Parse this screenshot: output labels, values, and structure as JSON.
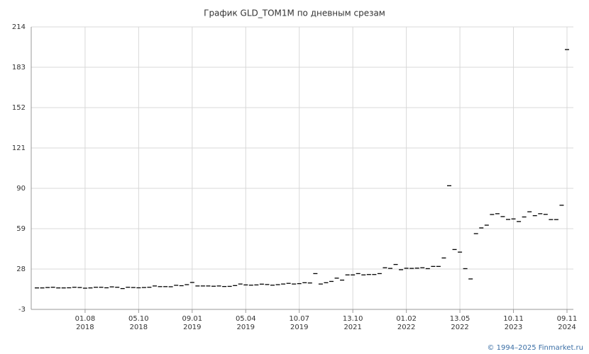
{
  "chart_data": {
    "type": "scatter",
    "marker": "dash",
    "title": "График GLD_TOM1M по дневным срезам",
    "credit": "© 1994–2025 Finmarket.ru",
    "color": "#000000",
    "grid": true,
    "categories": [
      null,
      null,
      null,
      null,
      null,
      null,
      null,
      null,
      null,
      "01.08\n2018",
      null,
      null,
      null,
      null,
      null,
      null,
      null,
      null,
      null,
      "05.10\n2018",
      null,
      null,
      null,
      null,
      null,
      null,
      null,
      null,
      null,
      "09.01\n2019",
      null,
      null,
      null,
      null,
      null,
      null,
      null,
      null,
      null,
      "05.04\n2019",
      null,
      null,
      null,
      null,
      null,
      null,
      null,
      null,
      null,
      "10.07\n2019",
      null,
      null,
      null,
      null,
      null,
      null,
      null,
      null,
      null,
      "13.10\n2021",
      null,
      null,
      null,
      null,
      null,
      null,
      null,
      null,
      null,
      "01.02\n2022",
      null,
      null,
      null,
      null,
      null,
      null,
      null,
      null,
      null,
      "13.05\n2022",
      null,
      null,
      null,
      null,
      null,
      null,
      null,
      null,
      null,
      "10.11\n2023",
      null,
      null,
      null,
      null,
      null,
      null,
      null,
      null,
      null,
      "09.11\n2024"
    ],
    "values": [
      13.5,
      13.5,
      13.8,
      14,
      13.5,
      13.5,
      13.6,
      14,
      13.8,
      13.3,
      13.5,
      14,
      14,
      13.6,
      14.3,
      14,
      13,
      14,
      13.8,
      13.6,
      13.8,
      14,
      15,
      14.5,
      14.5,
      14.4,
      15.5,
      15.2,
      16,
      17.7,
      15,
      15,
      15,
      14.8,
      15,
      14.6,
      14.7,
      15.3,
      16.5,
      15.8,
      15.6,
      15.8,
      16.4,
      16.1,
      15.6,
      16,
      16.5,
      17,
      16.5,
      16.8,
      17.5,
      17.3,
      24.5,
      16.5,
      17.5,
      18.5,
      21,
      19.5,
      23.5,
      23.5,
      24.5,
      23.5,
      23.8,
      23.8,
      24.5,
      29,
      28.5,
      31.5,
      27.5,
      28.6,
      28.5,
      28.7,
      29,
      28.3,
      30,
      30,
      36.5,
      92,
      43,
      41,
      28.3,
      20.4,
      55.2,
      59.6,
      61.7,
      69.9,
      70.5,
      68.3,
      66.1,
      66.5,
      64.5,
      68,
      72,
      69,
      70.5,
      70,
      66,
      66,
      77,
      196.6
    ],
    "ylim": [
      -3,
      214
    ],
    "yticks": [
      -3,
      28,
      59,
      90,
      121,
      152,
      183,
      214
    ]
  }
}
